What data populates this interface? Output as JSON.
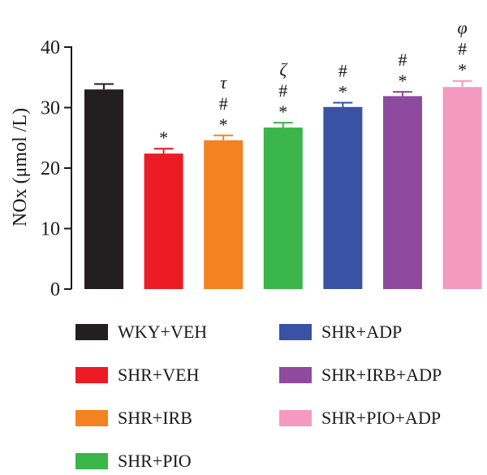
{
  "chart_data": {
    "type": "bar",
    "title": "",
    "ylabel": "NOx (μmol /L)",
    "xlabel": "",
    "ylim": [
      0,
      40
    ],
    "yticks": [
      0,
      10,
      20,
      30,
      40
    ],
    "series": [
      {
        "name": "WKY+VEH",
        "value": 33.0,
        "error": 0.9,
        "color": "#231f20",
        "marks": []
      },
      {
        "name": "SHR+VEH",
        "value": 22.4,
        "error": 0.8,
        "color": "#ed1c24",
        "marks": [
          "*"
        ]
      },
      {
        "name": "SHR+IRB",
        "value": 24.6,
        "error": 0.8,
        "color": "#f58220",
        "marks": [
          "τ",
          "#",
          "*"
        ]
      },
      {
        "name": "SHR+PIO",
        "value": 26.7,
        "error": 0.8,
        "color": "#39b54a",
        "marks": [
          "ζ",
          "#",
          "*"
        ]
      },
      {
        "name": "SHR+ADP",
        "value": 30.1,
        "error": 0.7,
        "color": "#3a52a4",
        "marks": [
          "#",
          "*"
        ]
      },
      {
        "name": "SHR+IRB+ADP",
        "value": 31.9,
        "error": 0.7,
        "color": "#8e4a9e",
        "marks": [
          "#",
          "*"
        ]
      },
      {
        "name": "SHR+PIO+ADP",
        "value": 33.4,
        "error": 1.0,
        "color": "#f49ac1",
        "marks": [
          "φ",
          "#",
          "*"
        ]
      }
    ],
    "legend": {
      "placement": "bottom",
      "columns": 2
    }
  }
}
